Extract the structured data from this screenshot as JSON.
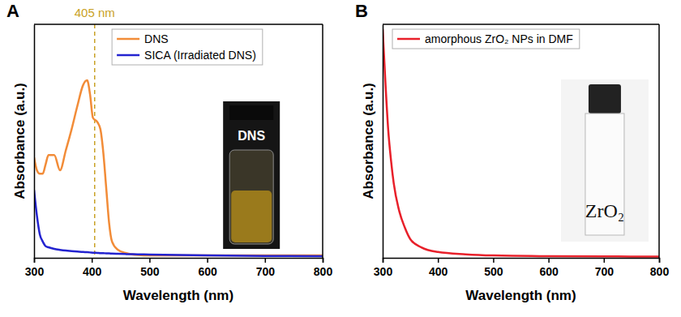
{
  "chart_data": [
    {
      "type": "line",
      "label": "A",
      "xlabel": "Wavelength (nm)",
      "ylabel": "Absorbance (a.u.)",
      "x": [
        300,
        305,
        310,
        315,
        320,
        325,
        335,
        345,
        355,
        365,
        375,
        385,
        392,
        397,
        402,
        410,
        415,
        420,
        425,
        430,
        435,
        445,
        460,
        480,
        500,
        600,
        700,
        800
      ],
      "series": [
        {
          "name": "DNS",
          "color": "#f28c38",
          "values": [
            0.43,
            0.375,
            0.36,
            0.36,
            0.4,
            0.44,
            0.44,
            0.375,
            0.46,
            0.55,
            0.65,
            0.74,
            0.76,
            0.7,
            0.6,
            0.58,
            0.55,
            0.45,
            0.3,
            0.15,
            0.07,
            0.035,
            0.02,
            0.012,
            0.01,
            0.01,
            0.01,
            0.01
          ]
        },
        {
          "name": "SICA (Irradiated DNS)",
          "color": "#2323d0",
          "values": [
            0.29,
            0.18,
            0.1,
            0.07,
            0.05,
            0.045,
            0.038,
            0.034,
            0.031,
            0.029,
            0.027,
            0.025,
            0.024,
            0.023,
            0.022,
            0.021,
            0.02,
            0.02,
            0.019,
            0.019,
            0.018,
            0.017,
            0.016,
            0.015,
            0.014,
            0.01,
            0.008,
            0.007
          ]
        }
      ],
      "xlim": [
        300,
        800
      ],
      "ylim": [
        0,
        1
      ],
      "xticks": [
        300,
        400,
        500,
        600,
        700,
        800
      ],
      "tick_labels": "x",
      "legend": "upper left",
      "annotations": [
        {
          "text": "405 nm",
          "x": 405
        }
      ],
      "inset_text": "DNS"
    },
    {
      "type": "line",
      "label": "B",
      "xlabel": "Wavelength (nm)",
      "ylabel": "Absorbance (a.u.)",
      "x": [
        300,
        305,
        310,
        315,
        320,
        330,
        340,
        350,
        370,
        400,
        450,
        500,
        600,
        700,
        800
      ],
      "series": [
        {
          "name": "amorphous ZrO₂ NPs in DMF",
          "color": "#e8202a",
          "values": [
            0.98,
            0.75,
            0.55,
            0.42,
            0.32,
            0.2,
            0.13,
            0.08,
            0.045,
            0.025,
            0.015,
            0.01,
            0.007,
            0.006,
            0.005
          ]
        }
      ],
      "xlim": [
        300,
        800
      ],
      "ylim": [
        0,
        1
      ],
      "xticks": [
        300,
        400,
        500,
        600,
        700,
        800
      ],
      "tick_labels": "x",
      "legend": "upper left",
      "inset_text": "ZrO₂"
    }
  ]
}
